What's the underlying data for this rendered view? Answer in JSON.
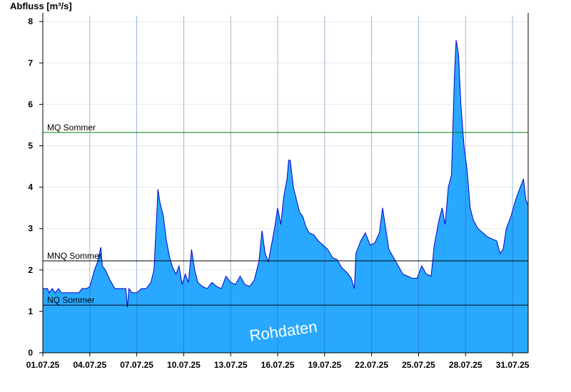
{
  "chart_data": {
    "type": "area",
    "ylabel": "Abfluss [m³/s]",
    "ylim": [
      0,
      8.2
    ],
    "yticks": [
      "0",
      "1",
      "2",
      "3",
      "4",
      "5",
      "6",
      "7",
      "8"
    ],
    "xlim": [
      1,
      32
    ],
    "xticks": [
      {
        "day": 1,
        "label": "01.07.25"
      },
      {
        "day": 4,
        "label": "04.07.25"
      },
      {
        "day": 7,
        "label": "07.07.25"
      },
      {
        "day": 10,
        "label": "10.07.25"
      },
      {
        "day": 13,
        "label": "13.07.25"
      },
      {
        "day": 16,
        "label": "16.07.25"
      },
      {
        "day": 19,
        "label": "19.07.25"
      },
      {
        "day": 22,
        "label": "22.07.25"
      },
      {
        "day": 25,
        "label": "25.07.25"
      },
      {
        "day": 28,
        "label": "28.07.25"
      },
      {
        "day": 31,
        "label": "31.07.25"
      }
    ],
    "reference_lines": [
      {
        "name": "MQ Sommer",
        "value": 5.32,
        "color": "#008000"
      },
      {
        "name": "MNQ Sommer",
        "value": 2.22,
        "color": "#000000"
      },
      {
        "name": "NQ Sommer",
        "value": 1.15,
        "color": "#000000"
      }
    ],
    "watermark": "Rohdaten",
    "grid": true,
    "area_color": "#29a8ff",
    "line_color": "#0000cc",
    "series": [
      {
        "values": [
          [
            1.0,
            1.55
          ],
          [
            1.3,
            1.55
          ],
          [
            1.4,
            1.45
          ],
          [
            1.6,
            1.55
          ],
          [
            1.8,
            1.45
          ],
          [
            2.0,
            1.55
          ],
          [
            2.2,
            1.45
          ],
          [
            2.5,
            1.45
          ],
          [
            2.8,
            1.45
          ],
          [
            3.0,
            1.45
          ],
          [
            3.3,
            1.45
          ],
          [
            3.5,
            1.55
          ],
          [
            3.8,
            1.55
          ],
          [
            4.0,
            1.6
          ],
          [
            4.3,
            2.0
          ],
          [
            4.5,
            2.2
          ],
          [
            4.7,
            2.55
          ],
          [
            4.8,
            2.1
          ],
          [
            5.0,
            2.0
          ],
          [
            5.3,
            1.75
          ],
          [
            5.6,
            1.55
          ],
          [
            6.0,
            1.55
          ],
          [
            6.3,
            1.55
          ],
          [
            6.4,
            1.1
          ],
          [
            6.5,
            1.55
          ],
          [
            6.7,
            1.45
          ],
          [
            7.0,
            1.45
          ],
          [
            7.3,
            1.55
          ],
          [
            7.6,
            1.55
          ],
          [
            7.9,
            1.7
          ],
          [
            8.1,
            2.0
          ],
          [
            8.3,
            3.5
          ],
          [
            8.35,
            3.95
          ],
          [
            8.5,
            3.6
          ],
          [
            8.7,
            3.3
          ],
          [
            8.9,
            2.7
          ],
          [
            9.1,
            2.3
          ],
          [
            9.3,
            2.05
          ],
          [
            9.5,
            1.9
          ],
          [
            9.7,
            2.1
          ],
          [
            9.9,
            1.65
          ],
          [
            10.1,
            1.9
          ],
          [
            10.3,
            1.7
          ],
          [
            10.5,
            2.5
          ],
          [
            10.7,
            2.0
          ],
          [
            10.9,
            1.7
          ],
          [
            11.2,
            1.6
          ],
          [
            11.5,
            1.55
          ],
          [
            11.8,
            1.7
          ],
          [
            12.1,
            1.6
          ],
          [
            12.4,
            1.55
          ],
          [
            12.7,
            1.85
          ],
          [
            13.0,
            1.7
          ],
          [
            13.3,
            1.65
          ],
          [
            13.6,
            1.85
          ],
          [
            13.9,
            1.65
          ],
          [
            14.2,
            1.6
          ],
          [
            14.5,
            1.75
          ],
          [
            14.8,
            2.2
          ],
          [
            15.0,
            2.95
          ],
          [
            15.2,
            2.4
          ],
          [
            15.4,
            2.2
          ],
          [
            15.6,
            2.6
          ],
          [
            15.8,
            3.0
          ],
          [
            16.0,
            3.5
          ],
          [
            16.2,
            3.1
          ],
          [
            16.4,
            3.8
          ],
          [
            16.6,
            4.2
          ],
          [
            16.7,
            4.65
          ],
          [
            16.8,
            4.65
          ],
          [
            17.0,
            4.0
          ],
          [
            17.2,
            3.7
          ],
          [
            17.4,
            3.4
          ],
          [
            17.6,
            3.3
          ],
          [
            17.8,
            3.05
          ],
          [
            18.0,
            2.9
          ],
          [
            18.3,
            2.85
          ],
          [
            18.6,
            2.7
          ],
          [
            18.9,
            2.6
          ],
          [
            19.2,
            2.5
          ],
          [
            19.5,
            2.3
          ],
          [
            19.8,
            2.25
          ],
          [
            20.1,
            2.05
          ],
          [
            20.4,
            1.95
          ],
          [
            20.7,
            1.8
          ],
          [
            20.9,
            1.55
          ],
          [
            21.0,
            2.4
          ],
          [
            21.3,
            2.7
          ],
          [
            21.6,
            2.9
          ],
          [
            21.9,
            2.6
          ],
          [
            22.2,
            2.65
          ],
          [
            22.5,
            2.9
          ],
          [
            22.7,
            3.5
          ],
          [
            22.9,
            3.0
          ],
          [
            23.1,
            2.5
          ],
          [
            23.4,
            2.3
          ],
          [
            23.7,
            2.1
          ],
          [
            24.0,
            1.9
          ],
          [
            24.3,
            1.85
          ],
          [
            24.6,
            1.8
          ],
          [
            24.9,
            1.8
          ],
          [
            25.2,
            2.1
          ],
          [
            25.5,
            1.9
          ],
          [
            25.8,
            1.85
          ],
          [
            26.0,
            2.6
          ],
          [
            26.3,
            3.2
          ],
          [
            26.5,
            3.5
          ],
          [
            26.7,
            3.1
          ],
          [
            26.9,
            4.0
          ],
          [
            27.1,
            4.3
          ],
          [
            27.3,
            6.8
          ],
          [
            27.4,
            7.55
          ],
          [
            27.55,
            7.2
          ],
          [
            27.7,
            6.0
          ],
          [
            27.9,
            5.0
          ],
          [
            28.1,
            4.4
          ],
          [
            28.3,
            3.5
          ],
          [
            28.5,
            3.2
          ],
          [
            28.8,
            3.0
          ],
          [
            29.1,
            2.9
          ],
          [
            29.4,
            2.8
          ],
          [
            29.7,
            2.75
          ],
          [
            30.0,
            2.7
          ],
          [
            30.2,
            2.4
          ],
          [
            30.4,
            2.5
          ],
          [
            30.6,
            3.0
          ],
          [
            30.9,
            3.3
          ],
          [
            31.2,
            3.7
          ],
          [
            31.5,
            4.0
          ],
          [
            31.7,
            4.2
          ],
          [
            31.85,
            3.7
          ],
          [
            32.0,
            3.55
          ]
        ]
      }
    ]
  }
}
